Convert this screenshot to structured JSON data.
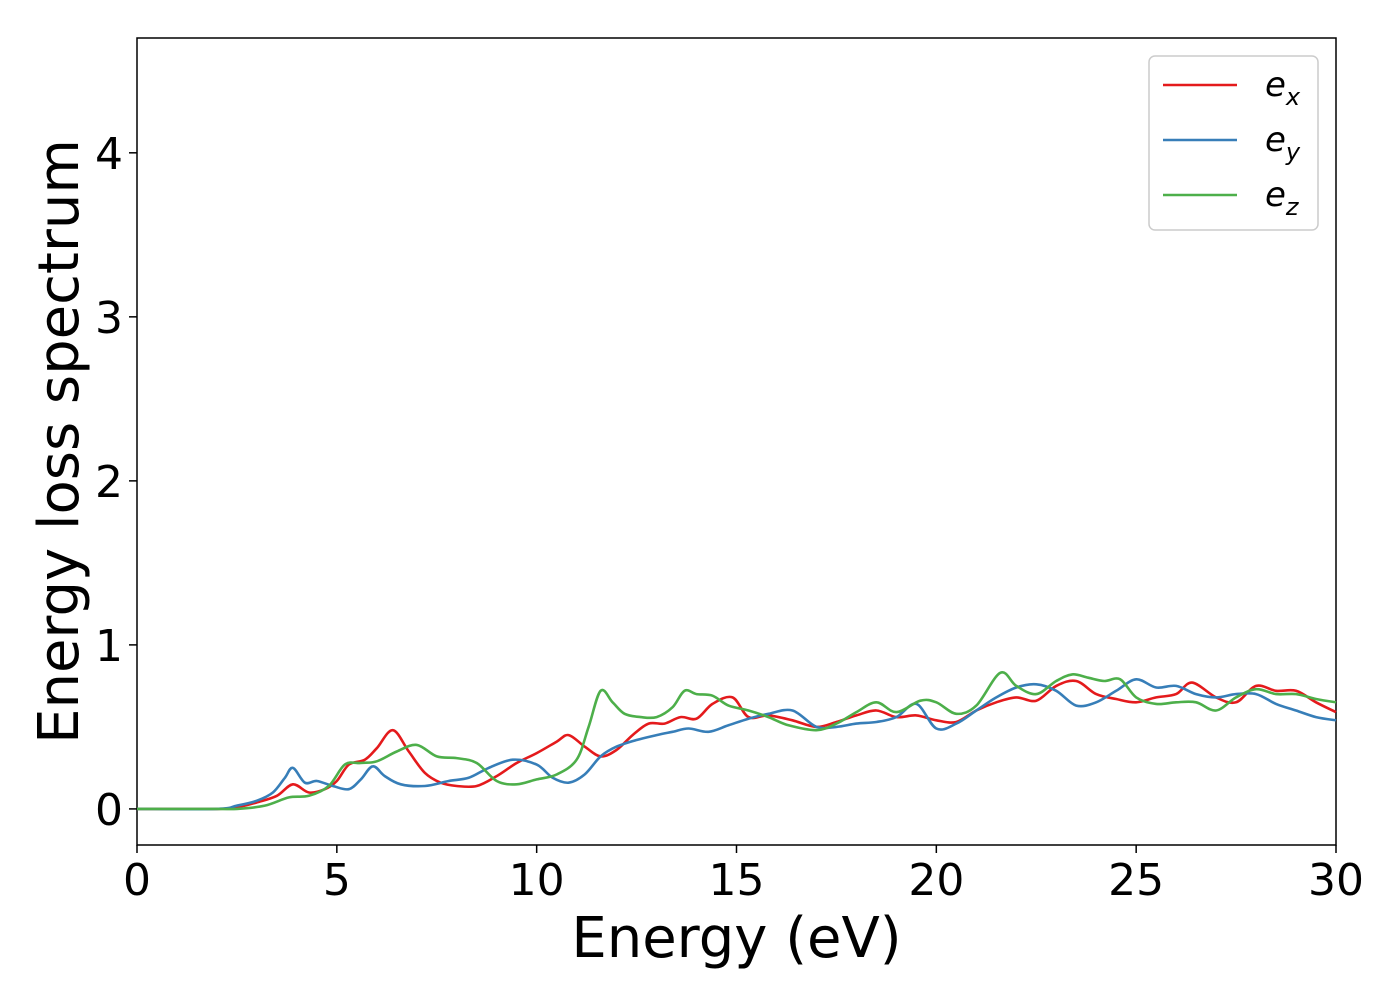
{
  "chart_data": {
    "type": "line",
    "title": "",
    "xlabel": "Energy (eV)",
    "ylabel": "Energy loss spectrum",
    "xlim": [
      0,
      30
    ],
    "ylim": [
      -0.22,
      4.7
    ],
    "xticks": [
      0,
      5,
      10,
      15,
      20,
      25,
      30
    ],
    "yticks": [
      0,
      1,
      2,
      3,
      4
    ],
    "grid": false,
    "legend_position": "top-right",
    "series": [
      {
        "name": "e_x",
        "legend_base": "e",
        "legend_sub": "x",
        "color": "#e41a1c",
        "x": [
          0,
          2,
          2.5,
          3,
          3.5,
          3.9,
          4.3,
          4.7,
          5,
          5.3,
          5.7,
          6,
          6.4,
          6.8,
          7.2,
          7.6,
          8,
          8.5,
          9,
          9.5,
          10,
          10.5,
          10.8,
          11.2,
          11.6,
          12,
          12.4,
          12.8,
          13.2,
          13.6,
          14,
          14.4,
          14.9,
          15.3,
          15.8,
          16.4,
          17,
          17.5,
          18,
          18.5,
          19,
          19.5,
          20,
          20.5,
          21,
          21.5,
          22,
          22.5,
          23,
          23.5,
          24,
          24.5,
          25,
          25.5,
          26,
          26.4,
          27,
          27.5,
          28,
          28.5,
          29,
          29.5,
          30
        ],
        "y": [
          0,
          0,
          0.01,
          0.04,
          0.08,
          0.15,
          0.1,
          0.12,
          0.17,
          0.27,
          0.3,
          0.37,
          0.48,
          0.35,
          0.22,
          0.16,
          0.14,
          0.14,
          0.2,
          0.28,
          0.34,
          0.41,
          0.45,
          0.38,
          0.32,
          0.36,
          0.45,
          0.52,
          0.52,
          0.56,
          0.55,
          0.64,
          0.68,
          0.56,
          0.57,
          0.54,
          0.5,
          0.53,
          0.57,
          0.6,
          0.56,
          0.57,
          0.54,
          0.53,
          0.6,
          0.65,
          0.68,
          0.66,
          0.75,
          0.78,
          0.7,
          0.67,
          0.65,
          0.68,
          0.7,
          0.77,
          0.68,
          0.65,
          0.75,
          0.72,
          0.72,
          0.65,
          0.59
        ]
      },
      {
        "name": "e_y",
        "legend_base": "e",
        "legend_sub": "y",
        "color": "#377eb8",
        "x": [
          0,
          2,
          2.5,
          3,
          3.4,
          3.7,
          3.9,
          4.2,
          4.5,
          4.9,
          5.3,
          5.6,
          5.9,
          6.2,
          6.6,
          7.2,
          7.8,
          8.3,
          8.8,
          9.4,
          10,
          10.4,
          10.8,
          11.2,
          11.6,
          12,
          12.5,
          13,
          13.4,
          13.8,
          14.3,
          14.8,
          15.3,
          15.8,
          16.4,
          17,
          17.5,
          18,
          18.5,
          19,
          19.5,
          20,
          20.5,
          21,
          21.5,
          22,
          22.5,
          23,
          23.5,
          24,
          24.5,
          25,
          25.5,
          26,
          26.5,
          27,
          27.5,
          28,
          28.5,
          29,
          29.5,
          30
        ],
        "y": [
          0,
          0,
          0.02,
          0.05,
          0.1,
          0.19,
          0.25,
          0.16,
          0.17,
          0.14,
          0.12,
          0.18,
          0.26,
          0.2,
          0.15,
          0.14,
          0.17,
          0.19,
          0.25,
          0.3,
          0.27,
          0.19,
          0.16,
          0.21,
          0.32,
          0.38,
          0.42,
          0.45,
          0.47,
          0.49,
          0.47,
          0.51,
          0.55,
          0.58,
          0.6,
          0.5,
          0.5,
          0.52,
          0.53,
          0.56,
          0.64,
          0.49,
          0.52,
          0.6,
          0.68,
          0.74,
          0.76,
          0.72,
          0.63,
          0.65,
          0.72,
          0.79,
          0.74,
          0.75,
          0.7,
          0.68,
          0.7,
          0.7,
          0.64,
          0.6,
          0.56,
          0.54
        ]
      },
      {
        "name": "e_z",
        "legend_base": "e",
        "legend_sub": "z",
        "color": "#4daf4a",
        "x": [
          0,
          2,
          2.5,
          3.2,
          3.8,
          4.3,
          4.8,
          5.2,
          5.6,
          6,
          6.5,
          7,
          7.5,
          8,
          8.5,
          9,
          9.5,
          10,
          10.5,
          11,
          11.3,
          11.6,
          11.9,
          12.2,
          12.6,
          13,
          13.4,
          13.7,
          14,
          14.4,
          14.8,
          15.3,
          15.8,
          16.3,
          17,
          17.5,
          18,
          18.5,
          19,
          19.6,
          20,
          20.5,
          21,
          21.6,
          22,
          22.5,
          23,
          23.4,
          23.8,
          24.2,
          24.6,
          25,
          25.5,
          26,
          26.5,
          27,
          27.5,
          28,
          28.5,
          29,
          29.5,
          30
        ],
        "y": [
          0,
          0,
          0,
          0.02,
          0.07,
          0.08,
          0.14,
          0.27,
          0.28,
          0.29,
          0.35,
          0.39,
          0.32,
          0.31,
          0.28,
          0.17,
          0.15,
          0.18,
          0.21,
          0.3,
          0.5,
          0.72,
          0.65,
          0.58,
          0.56,
          0.56,
          0.62,
          0.72,
          0.7,
          0.69,
          0.63,
          0.6,
          0.56,
          0.51,
          0.48,
          0.52,
          0.59,
          0.65,
          0.59,
          0.66,
          0.65,
          0.58,
          0.63,
          0.83,
          0.75,
          0.7,
          0.78,
          0.82,
          0.8,
          0.78,
          0.79,
          0.68,
          0.64,
          0.65,
          0.65,
          0.6,
          0.68,
          0.73,
          0.7,
          0.7,
          0.67,
          0.65
        ]
      }
    ]
  }
}
